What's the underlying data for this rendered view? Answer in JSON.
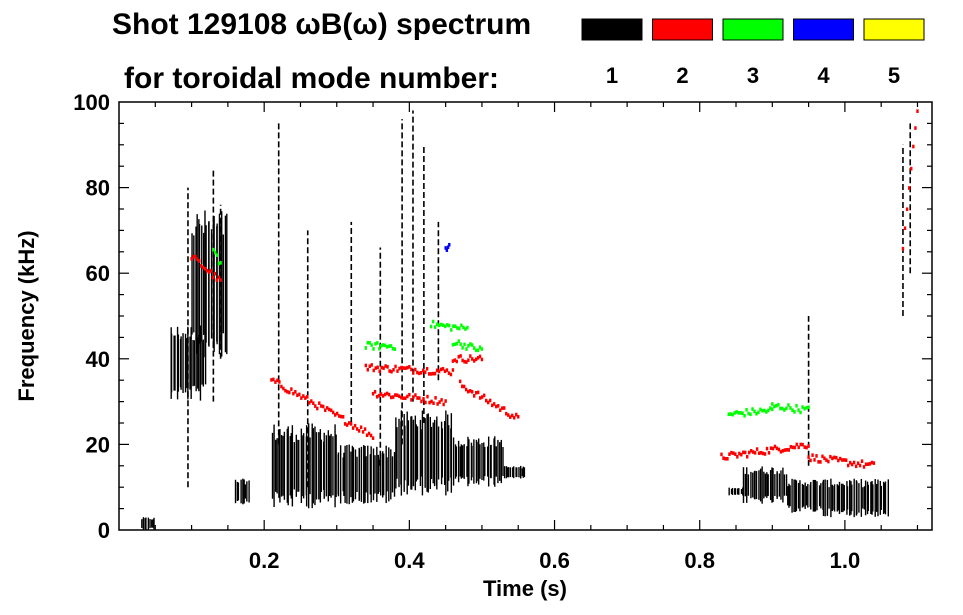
{
  "chart_data": {
    "type": "heatmap",
    "title": "Shot 129108 ωB(ω) spectrum",
    "subtitle": "for toroidal mode number:",
    "xlabel": "Time (s)",
    "ylabel": "Frequency (kHz)",
    "xlim": [
      0.0,
      1.12
    ],
    "ylim": [
      0,
      100
    ],
    "x_ticks": [
      "0.2",
      "0.4",
      "0.6",
      "0.8",
      "1.0"
    ],
    "x_tick_values": [
      0.2,
      0.4,
      0.6,
      0.8,
      1.0
    ],
    "y_ticks": [
      "0",
      "20",
      "40",
      "60",
      "80",
      "100"
    ],
    "y_tick_values": [
      0,
      20,
      40,
      60,
      80,
      100
    ],
    "legend_placement": "top-right",
    "series": [
      {
        "name": "1",
        "color": "#000000",
        "blobs": [
          [
            0.03,
            0.05,
            0,
            3
          ],
          [
            0.07,
            0.12,
            30,
            48
          ],
          [
            0.1,
            0.15,
            40,
            75
          ],
          [
            0.16,
            0.18,
            6,
            12
          ],
          [
            0.21,
            0.3,
            5,
            25
          ],
          [
            0.3,
            0.38,
            6,
            20
          ],
          [
            0.38,
            0.46,
            8,
            28
          ],
          [
            0.46,
            0.53,
            10,
            22
          ],
          [
            0.53,
            0.56,
            12,
            15
          ],
          [
            0.86,
            0.92,
            6,
            15
          ],
          [
            0.92,
            0.97,
            4,
            12
          ],
          [
            0.97,
            1.06,
            3,
            12
          ],
          [
            0.84,
            0.86,
            8,
            10
          ]
        ],
        "spikes": [
          [
            0.095,
            10,
            80
          ],
          [
            0.13,
            30,
            84
          ],
          [
            0.14,
            40,
            76
          ],
          [
            0.22,
            20,
            95
          ],
          [
            0.26,
            10,
            70
          ],
          [
            0.32,
            25,
            72
          ],
          [
            0.36,
            15,
            66
          ],
          [
            0.39,
            20,
            96
          ],
          [
            0.405,
            30,
            98
          ],
          [
            0.42,
            25,
            90
          ],
          [
            0.44,
            35,
            72
          ],
          [
            0.95,
            15,
            50
          ],
          [
            1.08,
            50,
            90
          ],
          [
            1.09,
            60,
            95
          ]
        ]
      },
      {
        "name": "2",
        "color": "#ff0000",
        "segments": [
          [
            0.1,
            64,
            0.14,
            58
          ],
          [
            0.21,
            35,
            0.35,
            22
          ],
          [
            0.35,
            32,
            0.45,
            30
          ],
          [
            0.34,
            38,
            0.46,
            37
          ],
          [
            0.46,
            40,
            0.5,
            40
          ],
          [
            0.47,
            34,
            0.55,
            26
          ],
          [
            0.83,
            17,
            0.95,
            20
          ],
          [
            0.95,
            17,
            1.04,
            15
          ],
          [
            1.08,
            66,
            1.1,
            98
          ]
        ]
      },
      {
        "name": "3",
        "color": "#00ff00",
        "segments": [
          [
            0.13,
            66,
            0.14,
            62
          ],
          [
            0.34,
            43,
            0.38,
            43
          ],
          [
            0.43,
            48,
            0.48,
            47
          ],
          [
            0.46,
            44,
            0.5,
            42
          ],
          [
            0.84,
            27,
            0.9,
            28
          ],
          [
            0.9,
            29,
            0.95,
            28
          ]
        ]
      },
      {
        "name": "4",
        "color": "#0000ff",
        "segments": [
          [
            0.45,
            66,
            0.455,
            66
          ]
        ]
      },
      {
        "name": "5",
        "color": "#ffff00",
        "segments": []
      }
    ]
  }
}
